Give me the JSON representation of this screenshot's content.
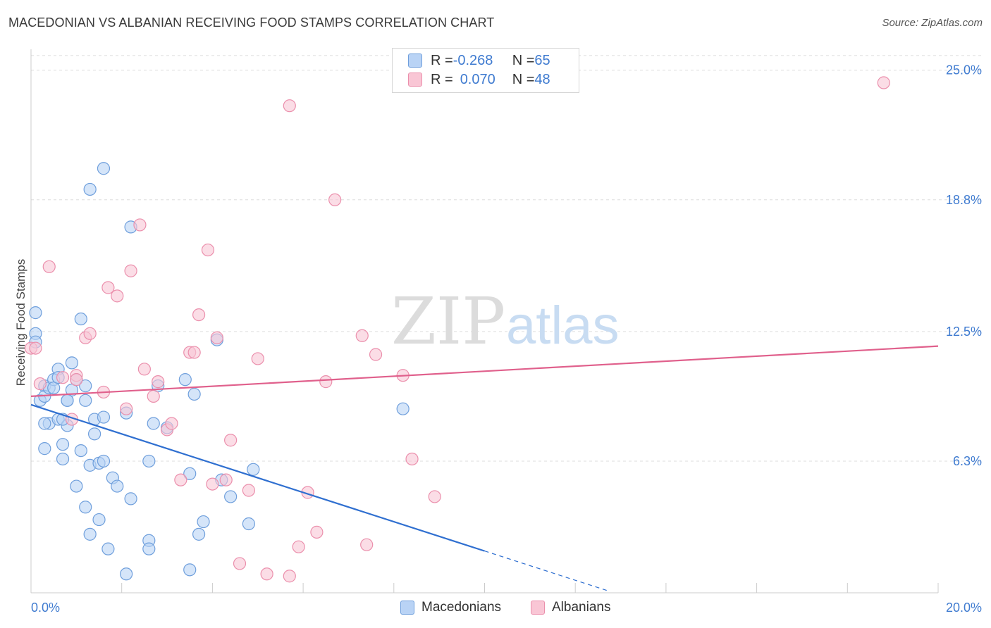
{
  "title": "MACEDONIAN VS ALBANIAN RECEIVING FOOD STAMPS CORRELATION CHART",
  "source": "Source: ZipAtlas.com",
  "watermark": {
    "zip": "ZIP",
    "atlas": "atlas"
  },
  "colors": {
    "macedonian_fill": "#b9d3f5",
    "macedonian_stroke": "#6f9fdc",
    "macedonian_line": "#2f6fd0",
    "albanian_fill": "#f9c6d5",
    "albanian_stroke": "#eb8fac",
    "albanian_line": "#e0608c",
    "tick_label": "#3f7bd0",
    "grid": "#dddddd"
  },
  "legend": {
    "rows": [
      {
        "r_label": "R = ",
        "r_value": "-0.268",
        "n_label": "N = ",
        "n_value": "65"
      },
      {
        "r_label": "R = ",
        "r_value": "0.070",
        "n_label": "N = ",
        "n_value": "48"
      }
    ]
  },
  "bottom_legend": {
    "macedonians": "Macedonians",
    "albanians": "Albanians"
  },
  "chart_data": {
    "type": "scatter",
    "title": "MACEDONIAN VS ALBANIAN RECEIVING FOOD STAMPS CORRELATION CHART",
    "xlabel": "",
    "ylabel": "Receiving Food Stamps",
    "xlim": [
      0,
      20
    ],
    "ylim": [
      0,
      26
    ],
    "x_tick_labels": [
      "0.0%",
      "20.0%"
    ],
    "y_ticks": [
      6.3,
      12.5,
      18.8,
      25.0
    ],
    "y_tick_labels": [
      "6.3%",
      "12.5%",
      "18.8%",
      "25.0%"
    ],
    "legend_position": "top-center",
    "series": [
      {
        "name": "Macedonians",
        "r": -0.268,
        "n": 65,
        "trend": {
          "x0": 0.0,
          "y0": 9.0,
          "x1": 10.0,
          "y1": 2.0,
          "dashed_to_x": 12.7
        },
        "points": [
          [
            0.1,
            13.4
          ],
          [
            0.1,
            12.4
          ],
          [
            0.1,
            12.0
          ],
          [
            0.2,
            9.2
          ],
          [
            0.3,
            9.9
          ],
          [
            0.3,
            9.4
          ],
          [
            0.4,
            9.8
          ],
          [
            0.4,
            8.1
          ],
          [
            0.5,
            10.2
          ],
          [
            0.5,
            9.8
          ],
          [
            0.6,
            10.7
          ],
          [
            0.6,
            10.3
          ],
          [
            0.6,
            8.3
          ],
          [
            0.7,
            7.1
          ],
          [
            0.7,
            6.4
          ],
          [
            0.8,
            9.2
          ],
          [
            0.8,
            8.0
          ],
          [
            0.9,
            11.0
          ],
          [
            0.9,
            9.7
          ],
          [
            0.3,
            6.9
          ],
          [
            1.0,
            10.2
          ],
          [
            1.0,
            5.1
          ],
          [
            1.1,
            6.8
          ],
          [
            1.1,
            13.1
          ],
          [
            1.2,
            9.9
          ],
          [
            1.2,
            9.2
          ],
          [
            1.2,
            4.1
          ],
          [
            1.3,
            6.1
          ],
          [
            1.3,
            2.8
          ],
          [
            1.3,
            19.3
          ],
          [
            1.4,
            7.6
          ],
          [
            1.4,
            8.3
          ],
          [
            1.5,
            6.2
          ],
          [
            1.5,
            3.5
          ],
          [
            1.6,
            8.4
          ],
          [
            1.6,
            6.3
          ],
          [
            1.6,
            20.3
          ],
          [
            1.7,
            2.1
          ],
          [
            1.8,
            5.5
          ],
          [
            1.9,
            5.1
          ],
          [
            2.1,
            8.6
          ],
          [
            2.1,
            0.9
          ],
          [
            2.2,
            17.5
          ],
          [
            2.2,
            4.5
          ],
          [
            2.6,
            2.5
          ],
          [
            2.6,
            6.3
          ],
          [
            2.6,
            2.1
          ],
          [
            2.7,
            8.1
          ],
          [
            2.8,
            9.9
          ],
          [
            3.0,
            7.9
          ],
          [
            3.4,
            10.2
          ],
          [
            3.5,
            1.1
          ],
          [
            3.5,
            5.7
          ],
          [
            3.6,
            9.5
          ],
          [
            3.7,
            2.8
          ],
          [
            3.8,
            3.4
          ],
          [
            4.1,
            12.1
          ],
          [
            4.2,
            5.4
          ],
          [
            4.4,
            4.6
          ],
          [
            4.8,
            3.3
          ],
          [
            4.9,
            5.9
          ],
          [
            8.2,
            8.8
          ],
          [
            0.7,
            8.3
          ],
          [
            0.3,
            8.1
          ],
          [
            0.8,
            9.2
          ]
        ]
      },
      {
        "name": "Albanians",
        "r": 0.07,
        "n": 48,
        "trend": {
          "x0": 0.0,
          "y0": 9.4,
          "x1": 20.0,
          "y1": 11.8
        },
        "points": [
          [
            0.0,
            11.7
          ],
          [
            0.2,
            10.0
          ],
          [
            0.4,
            15.6
          ],
          [
            0.7,
            10.3
          ],
          [
            0.9,
            8.3
          ],
          [
            1.0,
            10.4
          ],
          [
            1.2,
            12.2
          ],
          [
            1.3,
            12.4
          ],
          [
            1.6,
            9.6
          ],
          [
            1.7,
            14.6
          ],
          [
            1.9,
            14.2
          ],
          [
            2.1,
            8.8
          ],
          [
            2.2,
            15.4
          ],
          [
            2.4,
            17.6
          ],
          [
            2.5,
            10.7
          ],
          [
            2.7,
            9.4
          ],
          [
            2.8,
            10.1
          ],
          [
            3.0,
            7.8
          ],
          [
            3.1,
            8.1
          ],
          [
            3.3,
            5.4
          ],
          [
            3.5,
            11.5
          ],
          [
            3.6,
            11.5
          ],
          [
            3.7,
            13.3
          ],
          [
            3.9,
            16.4
          ],
          [
            4.0,
            5.2
          ],
          [
            4.1,
            12.2
          ],
          [
            4.3,
            5.4
          ],
          [
            4.4,
            7.3
          ],
          [
            4.6,
            1.4
          ],
          [
            4.8,
            4.9
          ],
          [
            5.0,
            11.2
          ],
          [
            5.2,
            0.9
          ],
          [
            5.7,
            23.3
          ],
          [
            5.7,
            0.8
          ],
          [
            5.9,
            2.2
          ],
          [
            6.1,
            4.8
          ],
          [
            6.3,
            2.9
          ],
          [
            6.5,
            10.1
          ],
          [
            6.7,
            18.8
          ],
          [
            7.3,
            12.3
          ],
          [
            7.4,
            2.3
          ],
          [
            7.6,
            11.4
          ],
          [
            8.2,
            10.4
          ],
          [
            8.4,
            6.4
          ],
          [
            8.9,
            4.6
          ],
          [
            18.8,
            24.4
          ],
          [
            0.1,
            11.7
          ],
          [
            1.0,
            10.2
          ]
        ]
      }
    ]
  }
}
